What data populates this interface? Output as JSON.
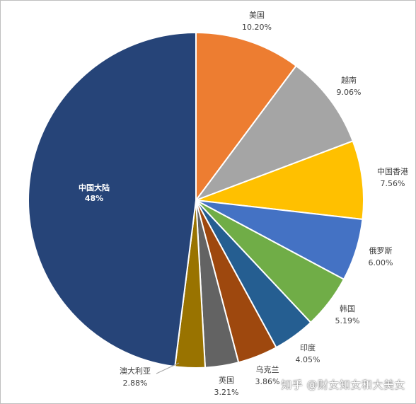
{
  "chart_data": {
    "type": "pie",
    "title": "",
    "slices": [
      {
        "name": "美国",
        "value": 10.2,
        "label": "10.20%",
        "color": "#ED7D31"
      },
      {
        "name": "越南",
        "value": 9.06,
        "label": "9.06%",
        "color": "#A5A5A5"
      },
      {
        "name": "中国香港",
        "value": 7.56,
        "label": "7.56%",
        "color": "#FFC000"
      },
      {
        "name": "俄罗斯",
        "value": 6.0,
        "label": "6.00%",
        "color": "#4472C4"
      },
      {
        "name": "韩国",
        "value": 5.19,
        "label": "5.19%",
        "color": "#70AD47"
      },
      {
        "name": "印度",
        "value": 4.05,
        "label": "4.05%",
        "color": "#255E91"
      },
      {
        "name": "乌克兰",
        "value": 3.86,
        "label": "3.86%",
        "color": "#9E480E"
      },
      {
        "name": "英国",
        "value": 3.21,
        "label": "3.21%",
        "color": "#636363"
      },
      {
        "name": "澳大利亚",
        "value": 2.88,
        "label": "2.88%",
        "color": "#997300"
      },
      {
        "name": "中国大陆",
        "value": 48,
        "label": "48%",
        "color": "#264478"
      }
    ],
    "start": "12 o'clock",
    "direction": "clockwise",
    "legend": "none"
  },
  "watermark": "知乎 @财女知女和大美女"
}
